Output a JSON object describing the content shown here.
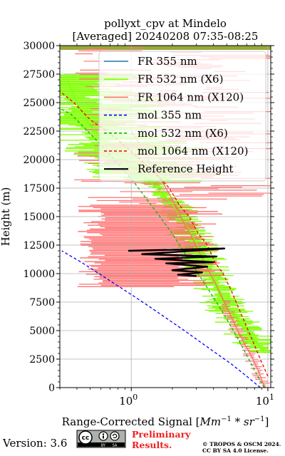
{
  "chart_data": {
    "type": "line",
    "title": "pollyxt_cpv at Mindelo",
    "subtitle": "[Averaged] 20240208 07:35-08:25",
    "xlabel": "Range-Corrected Signal [Mm⁻¹ * sr⁻¹]",
    "xlabel_parts": {
      "base": "Range-Corrected Signal [",
      "mm": "Mm",
      "mm_exp": "−1",
      "star": " * ",
      "sr": "sr",
      "sr_exp": "−1",
      "close": "]"
    },
    "ylabel": "Height (m)",
    "xscale": "log",
    "xlim": [
      0.3,
      10.5
    ],
    "ylim": [
      0,
      30000
    ],
    "x_ticks": [
      {
        "value": 1,
        "base": "10",
        "exp": "0"
      },
      {
        "value": 10,
        "base": "10",
        "exp": "1"
      }
    ],
    "y_ticks": [
      0,
      2500,
      5000,
      7500,
      10000,
      12500,
      15000,
      17500,
      20000,
      22500,
      25000,
      27500,
      30000
    ],
    "y_tick_labels": [
      "0",
      "2500",
      "5000",
      "7500",
      "10000",
      "12500",
      "15000",
      "17500",
      "20000",
      "22500",
      "25000",
      "27500",
      "30000"
    ],
    "grid": true,
    "legend_position": "top-right",
    "series": [
      {
        "name": "FR 355 nm",
        "color": "#1f77b4",
        "style": "solid",
        "x": [],
        "y": []
      },
      {
        "name": "FR 532 nm (X6)",
        "color": "#80ff00",
        "style": "solid",
        "x": [
          9.6,
          8.2,
          6.8,
          6.0,
          5.0,
          4.5,
          4.1,
          3.8,
          3.5,
          3.2,
          2.9,
          2.6,
          2.3,
          2.0,
          1.7,
          1.4,
          1.1,
          0.85,
          0.65,
          0.5,
          0.4,
          0.34
        ],
        "y": [
          3000,
          4000,
          5000,
          6000,
          7000,
          8000,
          9000,
          10000,
          11000,
          12000,
          13000,
          14000,
          15000,
          16000,
          17000,
          18000,
          19000,
          20000,
          21500,
          23000,
          25000,
          27000
        ]
      },
      {
        "name": "FR 1064 nm (X120)",
        "color": "#ff6b6b",
        "style": "solid",
        "x": [
          9.5,
          8.5,
          7.4,
          6.3,
          5.5,
          4.8,
          4.2,
          3.6,
          3.1,
          2.7,
          2.3,
          2.0,
          1.7,
          1.4,
          1.2,
          1.0
        ],
        "y": [
          0,
          1500,
          3000,
          4500,
          6000,
          7500,
          9000,
          10500,
          12000,
          13500,
          15000,
          16500,
          18000,
          19500,
          21000,
          22500
        ]
      },
      {
        "name": "mol 355 nm",
        "color": "#0000ff",
        "style": "dashed",
        "x": [
          8.8,
          7.0,
          5.5,
          4.2,
          3.2,
          2.45,
          1.85,
          1.4,
          1.05,
          0.78,
          0.58,
          0.43,
          0.31
        ],
        "y": [
          0,
          1000,
          2000,
          3000,
          4000,
          5000,
          6000,
          7000,
          8000,
          9000,
          10000,
          11000,
          12000
        ]
      },
      {
        "name": "mol 532 nm (X6)",
        "color": "#00bb00",
        "style": "dashed",
        "x": [
          9.4,
          8.0,
          6.9,
          5.9,
          5.0,
          4.2,
          3.5,
          2.9,
          2.4,
          2.0,
          1.62,
          1.3,
          1.05,
          0.82,
          0.63,
          0.48,
          0.36,
          0.3
        ],
        "y": [
          0,
          1500,
          3000,
          4500,
          6000,
          7500,
          9000,
          10500,
          12000,
          13500,
          15000,
          16500,
          18000,
          19500,
          21000,
          22500,
          24000,
          24500
        ]
      },
      {
        "name": "mol 1064 nm (X120)",
        "color": "#ee0000",
        "style": "dashed",
        "x": [
          10.0,
          8.8,
          7.8,
          6.9,
          6.1,
          5.4,
          4.7,
          4.1,
          3.6,
          3.1,
          2.65,
          2.25,
          1.9,
          1.58,
          1.3,
          1.05,
          0.84,
          0.66,
          0.5,
          0.38,
          0.3
        ],
        "y": [
          1000,
          2500,
          4000,
          5500,
          7000,
          8500,
          10000,
          11000,
          12500,
          13500,
          15000,
          16000,
          17500,
          18500,
          19500,
          20500,
          21500,
          22500,
          23500,
          25000,
          26000
        ]
      },
      {
        "name": "Reference Height",
        "color": "#000000",
        "style": "solid",
        "x": [
          0.95,
          4.8,
          1.2,
          4.2,
          1.5,
          4.0,
          1.8,
          3.6,
          2.0,
          3.3,
          2.2,
          3.0
        ],
        "y": [
          12000,
          12200,
          11700,
          11500,
          11300,
          11000,
          10900,
          10600,
          10300,
          10100,
          9900,
          9800
        ]
      }
    ]
  },
  "footer": {
    "version": "Version: 3.6",
    "license_badge": {
      "cc": "cc",
      "by": "BY",
      "sa": "SA"
    },
    "preliminary_line1": "Preliminary",
    "preliminary_line2": "Results.",
    "copyright_line1": "© TROPOS & OSCM 2024.",
    "copyright_line2": "CC BY SA 4.0 License."
  }
}
